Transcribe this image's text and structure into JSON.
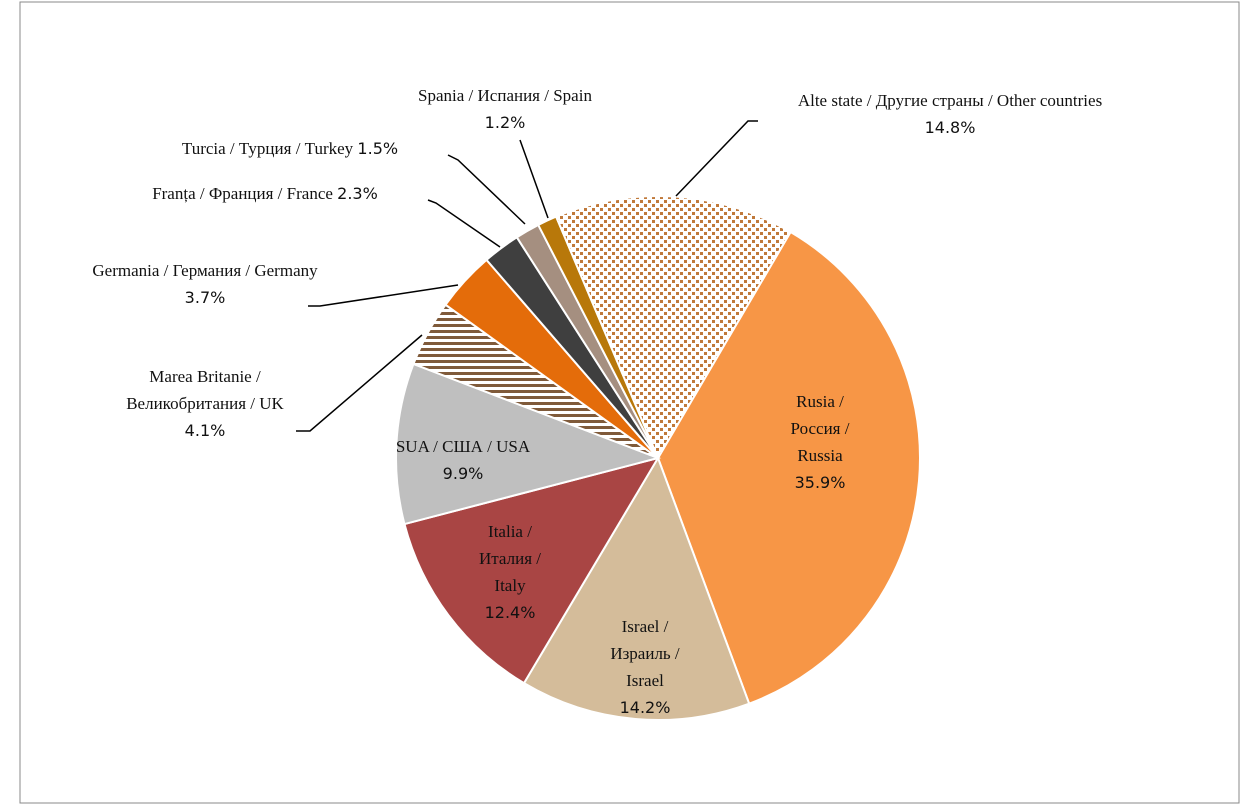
{
  "chart_data": {
    "type": "pie",
    "categories": [
      "Rusia / Россия / Russia",
      "Israel / Израиль / Israel",
      "Italia / Италия / Italy",
      "SUA / США / USA",
      "Marea Britanie / Великобритания / UK",
      "Germania / Германия / Germany",
      "Franța / Франция / France",
      "Turcia / Турция / Turkey",
      "Spania / Испания / Spain",
      "Alte state / Другие страны / Other countries"
    ],
    "values": [
      35.9,
      14.2,
      12.4,
      9.9,
      4.1,
      3.7,
      2.3,
      1.5,
      1.2,
      14.8
    ],
    "value_labels": [
      "35.9%",
      "14.2%",
      "12.4%",
      "9.9%",
      "4.1%",
      "3.7%",
      "2.3%",
      "1.5%",
      "1.2%",
      "14.8%"
    ],
    "colors": [
      "#f79646",
      "#d4bc9a",
      "#a94544",
      "#bfbfbf",
      "pattern-stripes",
      "#e46c0a",
      "#3f3f3f",
      "#a58f80",
      "#b8780a",
      "pattern-dots"
    ]
  }
}
